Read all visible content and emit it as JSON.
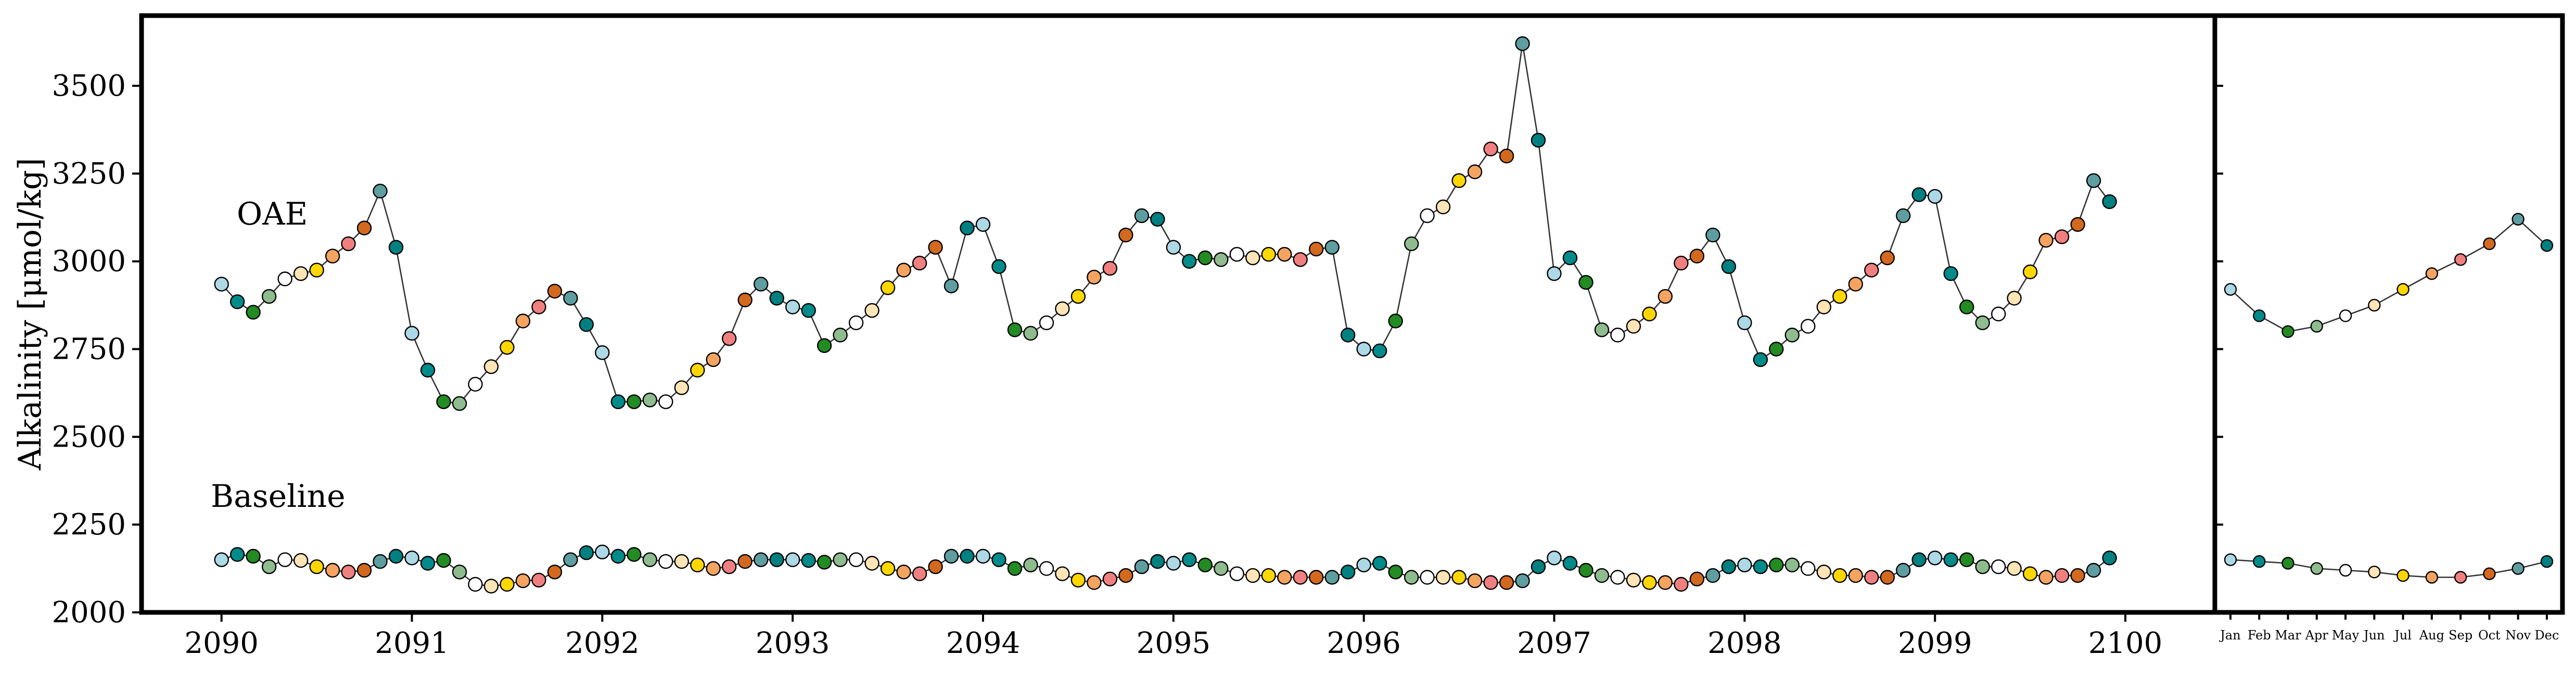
{
  "chart_data": {
    "type": "scatter",
    "ylabel": "Alkalinity [μmol/kg]",
    "ylim": [
      2000,
      3700
    ],
    "yticks": [
      2000,
      2250,
      2500,
      2750,
      3000,
      3250,
      3500
    ],
    "xlim": [
      2089.58,
      2100.47
    ],
    "xticks": [
      2090,
      2091,
      2092,
      2093,
      2094,
      2095,
      2096,
      2097,
      2098,
      2099,
      2100
    ],
    "annotations": [
      "OAE",
      "Baseline"
    ],
    "grid": false,
    "marker_colors_by_month": [
      "#ADD8E6",
      "#008B8B",
      "#228B22",
      "#8FBC8F",
      "#FFFFFF",
      "#FFE4B5",
      "#FFD700",
      "#F4A460",
      "#F08080",
      "#D2691E",
      "#5F9EA0",
      "#008080"
    ],
    "main_panel": {
      "x_start_year": 2090,
      "months_per_year": 12,
      "series": [
        {
          "label": "OAE",
          "values": [
            2935,
            2885,
            2855,
            2900,
            2950,
            2965,
            2975,
            3015,
            3050,
            3095,
            3200,
            3040,
            2795,
            2690,
            2600,
            2595,
            2650,
            2700,
            2755,
            2830,
            2870,
            2915,
            2895,
            2820,
            2740,
            2600,
            2600,
            2605,
            2600,
            2640,
            2690,
            2720,
            2780,
            2890,
            2935,
            2895,
            2870,
            2860,
            2760,
            2790,
            2825,
            2860,
            2925,
            2975,
            2995,
            3040,
            2930,
            3095,
            3105,
            2985,
            2805,
            2795,
            2825,
            2865,
            2900,
            2955,
            2980,
            3075,
            3130,
            3120,
            3040,
            3000,
            3010,
            3005,
            3020,
            3010,
            3020,
            3020,
            3005,
            3035,
            3040,
            2790,
            2750,
            2745,
            2830,
            3050,
            3130,
            3155,
            3230,
            3255,
            3320,
            3300,
            3620,
            3345,
            2965,
            3010,
            2940,
            2805,
            2790,
            2815,
            2850,
            2900,
            2995,
            3015,
            3075,
            2985,
            2825,
            2720,
            2750,
            2790,
            2815,
            2870,
            2900,
            2935,
            2975,
            3010,
            3130,
            3190,
            3185,
            2965,
            2870,
            2825,
            2850,
            2895,
            2970,
            3060,
            3070,
            3105,
            3230,
            3170
          ]
        },
        {
          "label": "Baseline",
          "values": [
            2150,
            2165,
            2160,
            2130,
            2150,
            2148,
            2130,
            2120,
            2115,
            2120,
            2145,
            2160,
            2155,
            2140,
            2148,
            2115,
            2080,
            2075,
            2080,
            2090,
            2092,
            2115,
            2150,
            2170,
            2172,
            2160,
            2165,
            2150,
            2145,
            2145,
            2135,
            2125,
            2130,
            2145,
            2150,
            2150,
            2150,
            2148,
            2143,
            2150,
            2150,
            2140,
            2125,
            2115,
            2110,
            2130,
            2160,
            2160,
            2160,
            2150,
            2125,
            2135,
            2125,
            2110,
            2092,
            2085,
            2095,
            2105,
            2130,
            2145,
            2140,
            2150,
            2135,
            2125,
            2110,
            2105,
            2105,
            2100,
            2100,
            2100,
            2100,
            2115,
            2135,
            2140,
            2115,
            2100,
            2100,
            2100,
            2100,
            2090,
            2085,
            2085,
            2090,
            2130,
            2155,
            2140,
            2120,
            2105,
            2100,
            2092,
            2085,
            2085,
            2080,
            2095,
            2105,
            2130,
            2135,
            2130,
            2135,
            2135,
            2125,
            2115,
            2105,
            2105,
            2100,
            2100,
            2120,
            2150,
            2155,
            2150,
            2150,
            2130,
            2130,
            2125,
            2110,
            2100,
            2105,
            2105,
            2120,
            2155
          ]
        }
      ]
    },
    "climatology_panel": {
      "categories": [
        "Jan",
        "Feb",
        "Mar",
        "Apr",
        "May",
        "Jun",
        "Jul",
        "Aug",
        "Sep",
        "Oct",
        "Nov",
        "Dec"
      ],
      "series": [
        {
          "label": "OAE",
          "values": [
            2920,
            2845,
            2800,
            2815,
            2845,
            2875,
            2920,
            2965,
            3005,
            3050,
            3120,
            3045
          ]
        },
        {
          "label": "Baseline",
          "values": [
            2150,
            2145,
            2140,
            2125,
            2120,
            2115,
            2105,
            2100,
            2100,
            2110,
            2125,
            2145
          ]
        }
      ]
    }
  }
}
